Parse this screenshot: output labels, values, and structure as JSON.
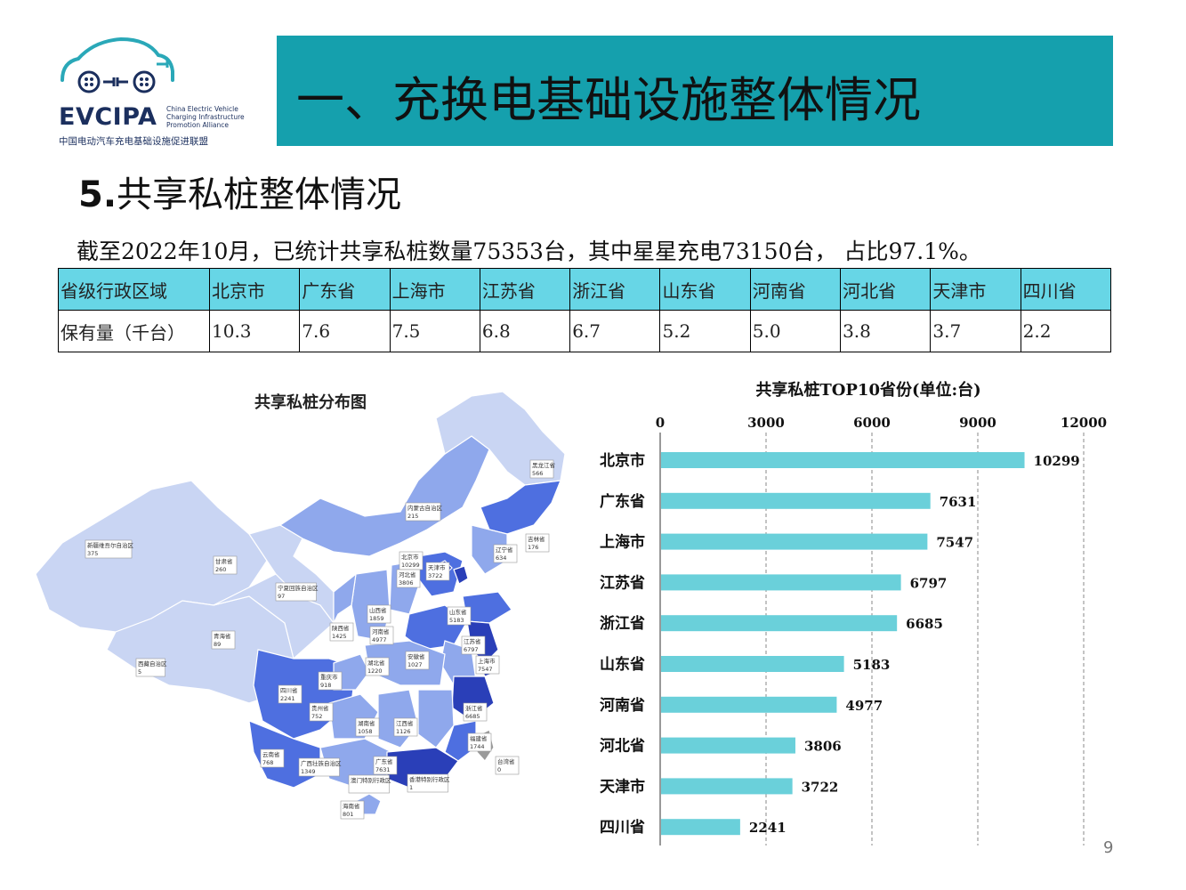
{
  "logo": {
    "abbr": "EVCIPA",
    "english_lines": [
      "China Electric Vehicle",
      "Charging Infrastructure",
      "Promotion Alliance"
    ],
    "chinese": "中国电动汽车充电基础设施促进联盟",
    "colors": {
      "teal": "#2aa8b8",
      "navy": "#1b2f5e"
    }
  },
  "header": {
    "title": "一、充换电基础设施整体情况",
    "banner_color": "#15a0ad"
  },
  "section": {
    "number": "5.",
    "title": "共享私桩整体情况"
  },
  "summary": "截至2022年10月，已统计共享私桩数量75353台，其中星星充电73150台， 占比97.1%。",
  "table": {
    "header_color": "#67d6e6",
    "row1_label": "省级行政区域",
    "row2_label": "保有量（千台）",
    "provinces": [
      "北京市",
      "广东省",
      "上海市",
      "江苏省",
      "浙江省",
      "山东省",
      "河南省",
      "河北省",
      "天津市",
      "四川省"
    ],
    "values": [
      "10.3",
      "7.6",
      "7.5",
      "6.8",
      "6.7",
      "5.2",
      "5.0",
      "3.8",
      "3.7",
      "2.2"
    ]
  },
  "map": {
    "title": "共享私桩分布图",
    "labels": [
      {
        "name": "黑龙江省",
        "value": "566"
      },
      {
        "name": "内蒙古自治区",
        "value": "215"
      },
      {
        "name": "吉林省",
        "value": "176"
      },
      {
        "name": "辽宁省",
        "value": "634"
      },
      {
        "name": "新疆维吾尔自治区",
        "value": "375"
      },
      {
        "name": "甘肃省",
        "value": "260"
      },
      {
        "name": "北京市",
        "value": "10299"
      },
      {
        "name": "天津市",
        "value": "3722"
      },
      {
        "name": "河北省",
        "value": "3806"
      },
      {
        "name": "宁夏回族自治区",
        "value": "97"
      },
      {
        "name": "山东省",
        "value": "5183"
      },
      {
        "name": "山西省",
        "value": "1859"
      },
      {
        "name": "陕西省",
        "value": "1425"
      },
      {
        "name": "河南省",
        "value": "4977"
      },
      {
        "name": "青海省",
        "value": "89"
      },
      {
        "name": "江苏省",
        "value": "6797"
      },
      {
        "name": "安徽省",
        "value": "1027"
      },
      {
        "name": "湖北省",
        "value": "1220"
      },
      {
        "name": "上海市",
        "value": "7547"
      },
      {
        "name": "西藏自治区",
        "value": "5"
      },
      {
        "name": "重庆市",
        "value": "918"
      },
      {
        "name": "四川省",
        "value": "2241"
      },
      {
        "name": "浙江省",
        "value": "6685"
      },
      {
        "name": "贵州省",
        "value": "752"
      },
      {
        "name": "湖南省",
        "value": "1058"
      },
      {
        "name": "江西省",
        "value": "1126"
      },
      {
        "name": "福建省",
        "value": "1744"
      },
      {
        "name": "云南省",
        "value": "768"
      },
      {
        "name": "广西壮族自治区",
        "value": "1349"
      },
      {
        "name": "广东省",
        "value": "7631"
      },
      {
        "name": "台湾省",
        "value": "0"
      },
      {
        "name": "澳门特别行政区",
        "value": ""
      },
      {
        "name": "香港特别行政区",
        "value": "1"
      },
      {
        "name": "海南省",
        "value": "801"
      }
    ],
    "colors": {
      "low": "#c9d5f3",
      "mid": "#8fa8ec",
      "high": "#4e6fe0",
      "top": "#2a3fb8",
      "taiwan": "#9a9a9a"
    }
  },
  "chart_data": {
    "type": "bar",
    "orientation": "horizontal",
    "title": "共享私桩TOP10省份(单位:台)",
    "categories": [
      "北京市",
      "广东省",
      "上海市",
      "江苏省",
      "浙江省",
      "山东省",
      "河南省",
      "河北省",
      "天津市",
      "四川省"
    ],
    "values": [
      10299,
      7631,
      7547,
      6797,
      6685,
      5183,
      4977,
      3806,
      3722,
      2241
    ],
    "xlim": [
      0,
      12000
    ],
    "xticks": [
      "0",
      "3000",
      "6000",
      "9000",
      "12000"
    ],
    "axis_position": "top",
    "grid": true,
    "bar_color": "#6ad0da"
  },
  "page_number": "9"
}
